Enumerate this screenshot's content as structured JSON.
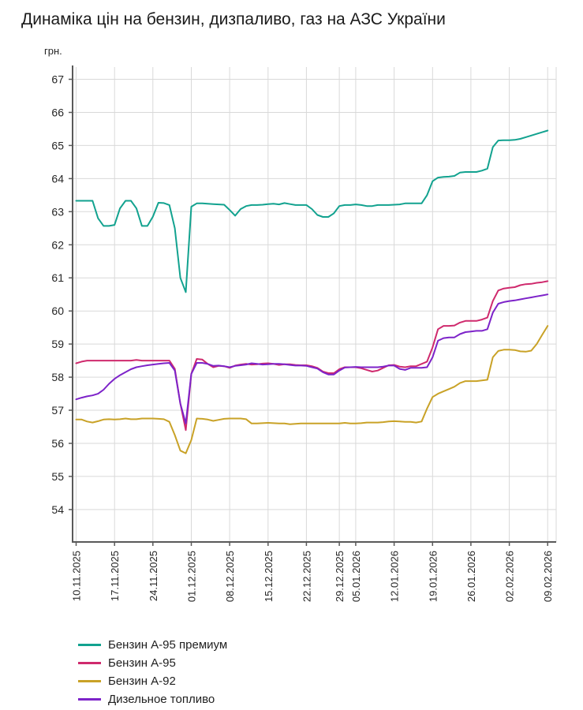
{
  "chart_data": {
    "type": "line",
    "title": "Динаміка цін на бензин, дизпаливо, газ на АЗС України",
    "ylabel": "грн.",
    "ylim": [
      53.02,
      67.37
    ],
    "y_ticks": [
      54,
      55,
      56,
      57,
      58,
      59,
      60,
      61,
      62,
      63,
      64,
      65,
      66,
      67
    ],
    "grid": true,
    "legend_position": "bottom-left",
    "x_tick_labels": [
      "10.11.2025",
      "17.11.2025",
      "24.11.2025",
      "01.12.2025",
      "08.12.2025",
      "15.12.2025",
      "22.12.2025",
      "29.12.2025",
      "05.01.2026",
      "12.01.2026",
      "19.01.2026",
      "26.01.2026",
      "02.02.2026",
      "09.02.2026"
    ],
    "x_tick_indices": [
      0,
      7,
      14,
      21,
      28,
      35,
      42,
      48,
      51,
      58,
      65,
      72,
      79,
      86
    ],
    "dates": [
      "10.11.2025",
      "11.11.2025",
      "12.11.2025",
      "13.11.2025",
      "14.11.2025",
      "15.11.2025",
      "16.11.2025",
      "17.11.2025",
      "18.11.2025",
      "19.11.2025",
      "20.11.2025",
      "21.11.2025",
      "22.11.2025",
      "23.11.2025",
      "24.11.2025",
      "25.11.2025",
      "26.11.2025",
      "27.11.2025",
      "28.11.2025",
      "29.11.2025",
      "30.11.2025",
      "01.12.2025",
      "02.12.2025",
      "03.12.2025",
      "04.12.2025",
      "05.12.2025",
      "06.12.2025",
      "07.12.2025",
      "08.12.2025",
      "09.12.2025",
      "10.12.2025",
      "11.12.2025",
      "12.12.2025",
      "13.12.2025",
      "14.12.2025",
      "15.12.2025",
      "16.12.2025",
      "17.12.2025",
      "18.12.2025",
      "19.12.2025",
      "20.12.2025",
      "21.12.2025",
      "22.12.2025",
      "23.12.2025",
      "24.12.2025",
      "26.12.2025",
      "27.12.2025",
      "28.12.2025",
      "29.12.2025",
      "30.12.2025",
      "31.12.2025",
      "05.01.2026",
      "06.01.2026",
      "07.01.2026",
      "08.01.2026",
      "09.01.2026",
      "10.01.2026",
      "11.01.2026",
      "12.01.2026",
      "13.01.2026",
      "14.01.2026",
      "15.01.2026",
      "16.01.2026",
      "17.01.2026",
      "18.01.2026",
      "19.01.2026",
      "20.01.2026",
      "21.01.2026",
      "22.01.2026",
      "23.01.2026",
      "24.01.2026",
      "25.01.2026",
      "26.01.2026",
      "27.01.2026",
      "28.01.2026",
      "29.01.2026",
      "30.01.2026",
      "31.01.2026",
      "01.02.2026",
      "02.02.2026",
      "03.02.2026",
      "04.02.2026",
      "05.02.2026",
      "06.02.2026",
      "07.02.2026",
      "08.02.2026",
      "09.02.2026"
    ],
    "series": [
      {
        "name": "Бензин А-95 премиум",
        "color": "#12a28f",
        "values": [
          63.33,
          63.33,
          63.33,
          63.33,
          62.8,
          62.57,
          62.57,
          62.6,
          63.1,
          63.33,
          63.33,
          63.1,
          62.57,
          62.57,
          62.85,
          63.27,
          63.26,
          63.2,
          62.5,
          61.0,
          60.57,
          63.15,
          63.25,
          63.25,
          63.24,
          63.23,
          63.22,
          63.21,
          63.05,
          62.88,
          63.08,
          63.17,
          63.2,
          63.2,
          63.21,
          63.23,
          63.24,
          63.22,
          63.26,
          63.23,
          63.2,
          63.2,
          63.2,
          63.08,
          62.9,
          62.84,
          62.84,
          62.95,
          63.17,
          63.2,
          63.2,
          63.22,
          63.2,
          63.17,
          63.17,
          63.2,
          63.2,
          63.2,
          63.21,
          63.22,
          63.25,
          63.25,
          63.25,
          63.25,
          63.5,
          63.92,
          64.03,
          64.05,
          64.06,
          64.08,
          64.18,
          64.2,
          64.2,
          64.2,
          64.24,
          64.3,
          64.95,
          65.15,
          65.16,
          65.16,
          65.17,
          65.2,
          65.25,
          65.3,
          65.35,
          65.4,
          65.45
        ]
      },
      {
        "name": "Бензин А-95",
        "color": "#cf2a6d",
        "values": [
          58.42,
          58.47,
          58.5,
          58.5,
          58.5,
          58.5,
          58.5,
          58.5,
          58.5,
          58.5,
          58.5,
          58.52,
          58.5,
          58.5,
          58.5,
          58.5,
          58.5,
          58.5,
          58.25,
          57.2,
          56.4,
          58.1,
          58.55,
          58.53,
          58.4,
          58.3,
          58.34,
          58.33,
          58.28,
          58.35,
          58.38,
          58.4,
          58.38,
          58.39,
          58.41,
          58.42,
          58.4,
          58.37,
          58.39,
          58.39,
          58.37,
          58.36,
          58.36,
          58.33,
          58.28,
          58.17,
          58.12,
          58.12,
          58.24,
          58.3,
          58.3,
          58.3,
          58.27,
          58.22,
          58.17,
          58.2,
          58.28,
          58.36,
          58.37,
          58.32,
          58.3,
          58.33,
          58.33,
          58.4,
          58.47,
          58.9,
          59.45,
          59.55,
          59.55,
          59.56,
          59.65,
          59.7,
          59.7,
          59.7,
          59.74,
          59.8,
          60.3,
          60.62,
          60.68,
          60.7,
          60.72,
          60.78,
          60.81,
          60.82,
          60.85,
          60.87,
          60.9
        ]
      },
      {
        "name": "Бензин А-92",
        "color": "#c9a227",
        "values": [
          56.72,
          56.72,
          56.66,
          56.63,
          56.67,
          56.72,
          56.73,
          56.72,
          56.73,
          56.75,
          56.73,
          56.73,
          56.75,
          56.75,
          56.75,
          56.74,
          56.73,
          56.65,
          56.25,
          55.78,
          55.7,
          56.1,
          56.75,
          56.74,
          56.72,
          56.68,
          56.71,
          56.74,
          56.75,
          56.75,
          56.75,
          56.73,
          56.6,
          56.6,
          56.61,
          56.62,
          56.61,
          56.6,
          56.6,
          56.58,
          56.59,
          56.6,
          56.6,
          56.6,
          56.6,
          56.6,
          56.6,
          56.6,
          56.6,
          56.62,
          56.6,
          56.6,
          56.61,
          56.63,
          56.63,
          56.63,
          56.64,
          56.66,
          56.67,
          56.66,
          56.65,
          56.65,
          56.63,
          56.66,
          57.05,
          57.4,
          57.5,
          57.57,
          57.64,
          57.71,
          57.82,
          57.88,
          57.88,
          57.88,
          57.9,
          57.92,
          58.6,
          58.79,
          58.83,
          58.83,
          58.82,
          58.78,
          58.77,
          58.8,
          59.0,
          59.28,
          59.55
        ]
      },
      {
        "name": "Дизельное топливо",
        "color": "#7d23c9",
        "values": [
          57.33,
          57.38,
          57.42,
          57.45,
          57.5,
          57.62,
          57.8,
          57.95,
          58.06,
          58.15,
          58.24,
          58.3,
          58.33,
          58.36,
          58.38,
          58.4,
          58.42,
          58.43,
          58.2,
          57.2,
          56.6,
          58.1,
          58.43,
          58.43,
          58.4,
          58.34,
          58.35,
          58.33,
          58.3,
          58.34,
          58.36,
          58.38,
          58.42,
          58.4,
          58.38,
          58.39,
          58.4,
          58.4,
          58.39,
          58.37,
          58.35,
          58.35,
          58.34,
          58.3,
          58.26,
          58.15,
          58.08,
          58.08,
          58.2,
          58.29,
          58.3,
          58.31,
          58.3,
          58.3,
          58.3,
          58.3,
          58.32,
          58.35,
          58.35,
          58.25,
          58.22,
          58.28,
          58.28,
          58.28,
          58.3,
          58.6,
          59.1,
          59.18,
          59.2,
          59.2,
          59.3,
          59.36,
          59.38,
          59.4,
          59.4,
          59.45,
          59.95,
          60.22,
          60.27,
          60.3,
          60.32,
          60.35,
          60.38,
          60.41,
          60.44,
          60.47,
          60.5
        ]
      }
    ]
  },
  "colors": {
    "background": "#ffffff",
    "grid": "#d9d9d9",
    "axis": "#595959",
    "tick_text": "#262626",
    "title_text": "#1a1a1a"
  }
}
